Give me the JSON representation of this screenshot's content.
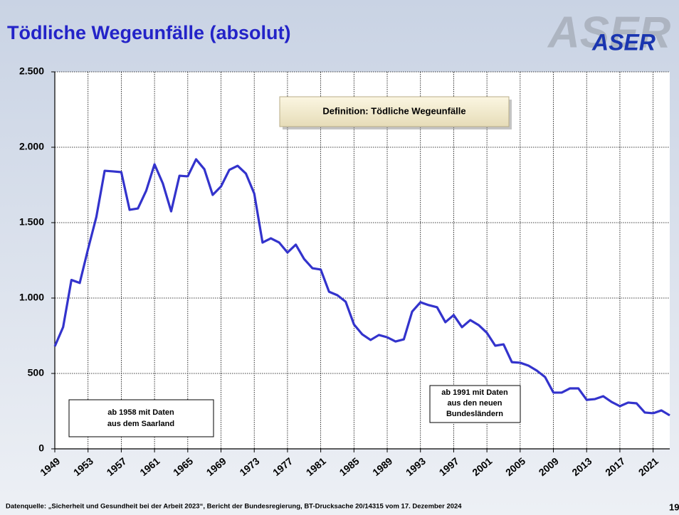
{
  "chart_data": {
    "type": "line",
    "title": "Tödliche Wegeunfälle (absolut)",
    "logo": "ASER",
    "definition": "Definition: Tödliche Wegeunfälle",
    "annotations": [
      [
        "ab 1958 mit Daten",
        "aus dem Saarland"
      ],
      [
        "ab 1991 mit Daten",
        "aus den neuen",
        "Bundesländern"
      ]
    ],
    "source": "Datenquelle: „Sicherheit und Gesundheit bei der Arbeit 2023“, Bericht der Bundesregierung, BT-Drucksache 20/14315 vom 17. Dezember 2024",
    "page_number": "19",
    "x": [
      1949,
      1950,
      1951,
      1952,
      1953,
      1954,
      1955,
      1956,
      1957,
      1958,
      1959,
      1960,
      1961,
      1962,
      1963,
      1964,
      1965,
      1966,
      1967,
      1968,
      1969,
      1970,
      1971,
      1972,
      1973,
      1974,
      1975,
      1976,
      1977,
      1978,
      1979,
      1980,
      1981,
      1982,
      1983,
      1984,
      1985,
      1986,
      1987,
      1988,
      1989,
      1990,
      1991,
      1992,
      1993,
      1994,
      1995,
      1996,
      1997,
      1998,
      1999,
      2000,
      2001,
      2002,
      2003,
      2004,
      2005,
      2006,
      2007,
      2008,
      2009,
      2010,
      2011,
      2012,
      2013,
      2014,
      2015,
      2016,
      2017,
      2018,
      2019,
      2020,
      2021,
      2022,
      2023
    ],
    "series": [
      {
        "name": "Tödliche Wegeunfälle",
        "color": "#3333cc",
        "values": [
          680,
          807,
          1120,
          1100,
          1325,
          1538,
          1844,
          1840,
          1835,
          1585,
          1594,
          1712,
          1887,
          1760,
          1575,
          1811,
          1807,
          1920,
          1854,
          1684,
          1740,
          1850,
          1877,
          1825,
          1693,
          1368,
          1396,
          1368,
          1302,
          1354,
          1259,
          1198,
          1189,
          1042,
          1019,
          976,
          825,
          759,
          722,
          755,
          740,
          712,
          726,
          910,
          972,
          953,
          939,
          840,
          887,
          807,
          854,
          821,
          769,
          684,
          693,
          575,
          571,
          552,
          519,
          476,
          373,
          373,
          401,
          401,
          325,
          330,
          349,
          311,
          283,
          307,
          302,
          241,
          236,
          255,
          222
        ]
      }
    ],
    "xlim": [
      1949,
      2023
    ],
    "xticks": [
      1949,
      1953,
      1957,
      1961,
      1965,
      1969,
      1973,
      1977,
      1981,
      1985,
      1989,
      1993,
      1997,
      2001,
      2005,
      2009,
      2013,
      2017,
      2021
    ],
    "ylim": [
      0,
      2500
    ],
    "yticks": [
      0,
      500,
      {
        "value": 1000,
        "label": "1.000"
      },
      {
        "value": 1500,
        "label": "1.500"
      },
      {
        "value": 2000,
        "label": "2.000"
      },
      {
        "value": 2500,
        "label": "2.500"
      }
    ],
    "grid": true
  }
}
